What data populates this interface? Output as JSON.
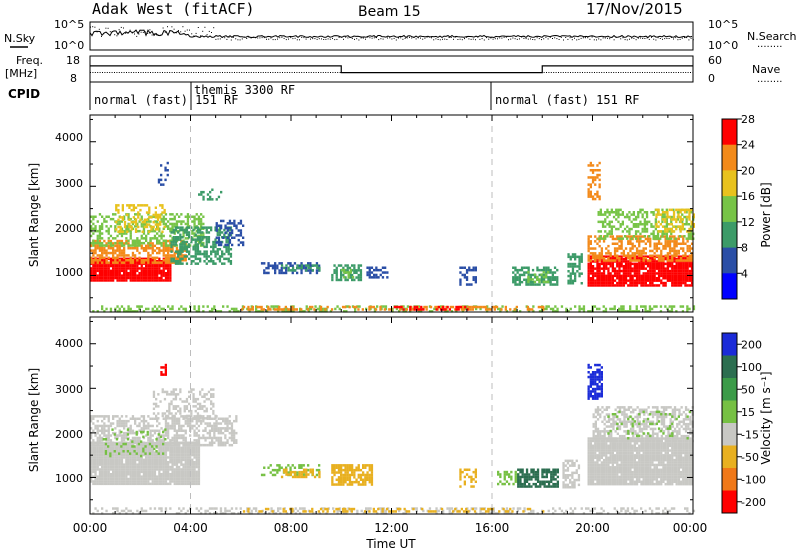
{
  "header": {
    "station": "Adak West (fitACF)",
    "beam": "Beam 15",
    "date": "17/Nov/2015"
  },
  "noise_panel": {
    "left_label": "N.Sky",
    "right_label": "N.Search",
    "left_ticks": [
      "10^5",
      "10^0"
    ],
    "right_ticks": [
      "10^5",
      "10^0"
    ],
    "legend_dots": "........"
  },
  "freq_panel": {
    "left_label_1": "Freq.",
    "left_label_2": "[MHz]",
    "right_label": "Nave",
    "left_ticks": [
      "18",
      "8"
    ],
    "right_ticks": [
      "60",
      "0"
    ],
    "legend_dots": "........",
    "freq_steps": [
      {
        "start_h": 0,
        "end_h": 10,
        "level": 0.62
      },
      {
        "start_h": 10,
        "end_h": 18,
        "level": 0.36
      },
      {
        "start_h": 18,
        "end_h": 24,
        "level": 0.62
      }
    ]
  },
  "cpid": {
    "label": "CPID",
    "segments": [
      {
        "start_h": 0,
        "text": "normal (fast) 151 RF"
      },
      {
        "start_h": 4,
        "text": "themis 3300 RF"
      },
      {
        "start_h": 16,
        "text": "normal (fast) 151 RF"
      }
    ]
  },
  "xaxis": {
    "label": "Time UT",
    "ticks": [
      "00:00",
      "04:00",
      "08:00",
      "12:00",
      "16:00",
      "20:00",
      "00:00"
    ],
    "range_h": [
      0,
      24
    ]
  },
  "power_panel": {
    "ylabel": "Slant Range [km]",
    "yticks": [
      "1000",
      "2000",
      "3000",
      "4000"
    ],
    "colorbar_label": "Power [dB]",
    "colorbar_ticks": [
      "4",
      "8",
      "12",
      "16",
      "20",
      "24",
      "28"
    ],
    "colors": [
      "#0000ff",
      "#2a4ea6",
      "#3c9b68",
      "#77c447",
      "#e8c21e",
      "#f38a1a",
      "#ff0000"
    ]
  },
  "velocity_panel": {
    "ylabel": "Slant Range [km]",
    "yticks": [
      "1000",
      "2000",
      "3000",
      "4000"
    ],
    "colorbar_label": "Velocity [m s⁻¹]",
    "colorbar_ticks": [
      "200",
      "100",
      "50",
      "15",
      "-15",
      "-50",
      "-100",
      "-200"
    ],
    "colors": [
      "#1b2bd8",
      "#2c6e50",
      "#3b9b48",
      "#76c043",
      "#c8c8c4",
      "#e8b020",
      "#f07818",
      "#ff0000"
    ]
  },
  "chart_data": {
    "type": "heatmap",
    "x_range_h": [
      0,
      24
    ],
    "y_range_km": [
      180,
      4600
    ],
    "power_patches": [
      {
        "t0": 0.0,
        "t1": 3.2,
        "r0": 880,
        "r1": 1400,
        "color": "#ff0000",
        "density": 0.95
      },
      {
        "t0": 0.0,
        "t1": 3.8,
        "r0": 1300,
        "r1": 1800,
        "color": "#f38a1a",
        "density": 0.6
      },
      {
        "t0": 0.0,
        "t1": 4.5,
        "r0": 1650,
        "r1": 2400,
        "color": "#77c447",
        "density": 0.45
      },
      {
        "t0": 1.0,
        "t1": 3.0,
        "r0": 2000,
        "r1": 2600,
        "color": "#e8c21e",
        "density": 0.35
      },
      {
        "t0": 3.2,
        "t1": 5.6,
        "r0": 1250,
        "r1": 2100,
        "color": "#3c9b68",
        "density": 0.55
      },
      {
        "t0": 5.0,
        "t1": 6.1,
        "r0": 1700,
        "r1": 2250,
        "color": "#2a4ea6",
        "density": 0.45
      },
      {
        "t0": 4.3,
        "t1": 5.2,
        "r0": 2700,
        "r1": 2950,
        "color": "#3c9b68",
        "density": 0.4
      },
      {
        "t0": 2.7,
        "t1": 3.1,
        "r0": 3050,
        "r1": 3550,
        "color": "#2a4ea6",
        "density": 0.25
      },
      {
        "t0": 6.8,
        "t1": 9.1,
        "r0": 1050,
        "r1": 1300,
        "color": "#2a4ea6",
        "density": 0.55
      },
      {
        "t0": 7.6,
        "t1": 9.1,
        "r0": 1100,
        "r1": 1250,
        "color": "#3c9b68",
        "density": 0.4
      },
      {
        "t0": 9.6,
        "t1": 10.8,
        "r0": 900,
        "r1": 1250,
        "color": "#3c9b68",
        "density": 0.7
      },
      {
        "t0": 9.9,
        "t1": 10.5,
        "r0": 950,
        "r1": 1150,
        "color": "#77c447",
        "density": 0.5
      },
      {
        "t0": 11.0,
        "t1": 11.8,
        "r0": 950,
        "r1": 1200,
        "color": "#2a4ea6",
        "density": 0.45
      },
      {
        "t0": 14.7,
        "t1": 15.4,
        "r0": 800,
        "r1": 1200,
        "color": "#2a4ea6",
        "density": 0.5
      },
      {
        "t0": 16.8,
        "t1": 18.6,
        "r0": 800,
        "r1": 1200,
        "color": "#3c9b68",
        "density": 0.65
      },
      {
        "t0": 17.4,
        "t1": 18.2,
        "r0": 850,
        "r1": 1100,
        "color": "#77c447",
        "density": 0.5
      },
      {
        "t0": 19.0,
        "t1": 19.6,
        "r0": 800,
        "r1": 1500,
        "color": "#3c9b68",
        "density": 0.5
      },
      {
        "t0": 19.8,
        "t1": 24.0,
        "r0": 800,
        "r1": 1450,
        "color": "#ff0000",
        "density": 0.9
      },
      {
        "t0": 19.8,
        "t1": 24.0,
        "r0": 1350,
        "r1": 1900,
        "color": "#f38a1a",
        "density": 0.55
      },
      {
        "t0": 20.2,
        "t1": 24.0,
        "r0": 1800,
        "r1": 2500,
        "color": "#77c447",
        "density": 0.45
      },
      {
        "t0": 22.5,
        "t1": 24.0,
        "r0": 2000,
        "r1": 2500,
        "color": "#e8c21e",
        "density": 0.45
      },
      {
        "t0": 19.8,
        "t1": 20.3,
        "r0": 2700,
        "r1": 3550,
        "color": "#f38a1a",
        "density": 0.5
      },
      {
        "t0": 0.0,
        "t1": 24.0,
        "r0": 200,
        "r1": 330,
        "color": "#77c447",
        "density": 0.35
      },
      {
        "t0": 6.0,
        "t1": 18.0,
        "r0": 220,
        "r1": 320,
        "color": "#f38a1a",
        "density": 0.4
      },
      {
        "t0": 12.0,
        "t1": 15.0,
        "r0": 220,
        "r1": 320,
        "color": "#ff0000",
        "density": 0.5
      }
    ],
    "velocity_patches": [
      {
        "t0": 0.0,
        "t1": 4.3,
        "r0": 880,
        "r1": 1800,
        "color": "#c8c8c4",
        "density": 0.95
      },
      {
        "t0": 0.0,
        "t1": 5.8,
        "r0": 1700,
        "r1": 2400,
        "color": "#c8c8c4",
        "density": 0.6
      },
      {
        "t0": 2.5,
        "t1": 5.0,
        "r0": 2300,
        "r1": 3000,
        "color": "#c8c8c4",
        "density": 0.35
      },
      {
        "t0": 0.5,
        "t1": 3.0,
        "r0": 1500,
        "r1": 2100,
        "color": "#76c043",
        "density": 0.18
      },
      {
        "t0": 2.8,
        "t1": 3.0,
        "r0": 3300,
        "r1": 3550,
        "color": "#ff0000",
        "density": 0.7
      },
      {
        "t0": 6.8,
        "t1": 9.1,
        "r0": 1050,
        "r1": 1300,
        "color": "#76c043",
        "density": 0.45
      },
      {
        "t0": 7.6,
        "t1": 9.1,
        "r0": 1000,
        "r1": 1200,
        "color": "#e8b020",
        "density": 0.55
      },
      {
        "t0": 9.6,
        "t1": 11.2,
        "r0": 850,
        "r1": 1300,
        "color": "#e8b020",
        "density": 0.75
      },
      {
        "t0": 14.7,
        "t1": 15.4,
        "r0": 800,
        "r1": 1200,
        "color": "#e8b020",
        "density": 0.45
      },
      {
        "t0": 16.2,
        "t1": 17.0,
        "r0": 850,
        "r1": 1150,
        "color": "#76c043",
        "density": 0.5
      },
      {
        "t0": 17.0,
        "t1": 18.6,
        "r0": 800,
        "r1": 1200,
        "color": "#2c6e50",
        "density": 0.75
      },
      {
        "t0": 18.8,
        "t1": 19.5,
        "r0": 800,
        "r1": 1400,
        "color": "#c8c8c4",
        "density": 0.6
      },
      {
        "t0": 19.8,
        "t1": 24.0,
        "r0": 850,
        "r1": 1900,
        "color": "#c8c8c4",
        "density": 0.95
      },
      {
        "t0": 20.0,
        "t1": 24.0,
        "r0": 1800,
        "r1": 2600,
        "color": "#c8c8c4",
        "density": 0.55
      },
      {
        "t0": 20.5,
        "t1": 24.0,
        "r0": 1900,
        "r1": 2500,
        "color": "#76c043",
        "density": 0.12
      },
      {
        "t0": 19.8,
        "t1": 20.4,
        "r0": 2750,
        "r1": 3550,
        "color": "#1b2bd8",
        "density": 0.65
      },
      {
        "t0": 0.0,
        "t1": 24.0,
        "r0": 200,
        "r1": 330,
        "color": "#c8c8c4",
        "density": 0.35
      },
      {
        "t0": 6.0,
        "t1": 18.0,
        "r0": 220,
        "r1": 320,
        "color": "#e8b020",
        "density": 0.35
      }
    ]
  }
}
